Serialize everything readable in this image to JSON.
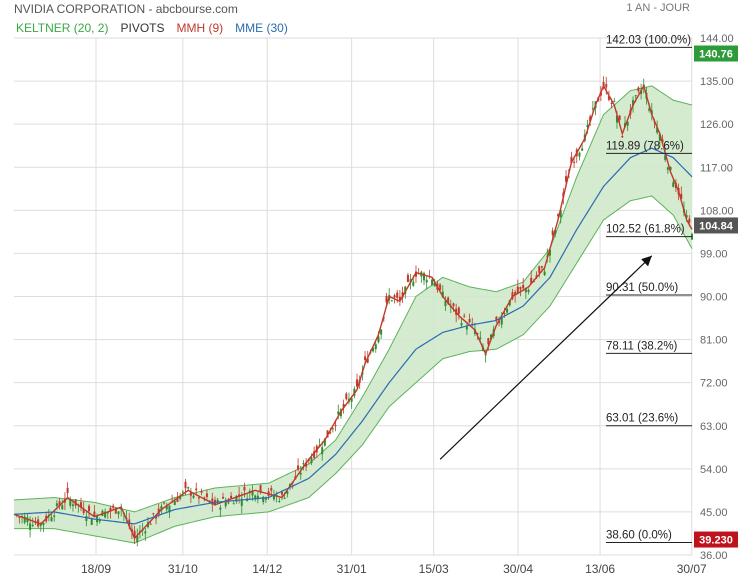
{
  "header": {
    "title": "NVIDIA CORPORATION - abcbourse.com",
    "period": "1 AN - JOUR"
  },
  "legend": [
    {
      "label": "KELTNER (20, 2)",
      "color": "#3aa843"
    },
    {
      "label": "PIVOTS",
      "color": "#333333"
    },
    {
      "label": "MMH (9)",
      "color": "#c0392b"
    },
    {
      "label": "MME (30)",
      "color": "#2b6cb0"
    }
  ],
  "chart_data": {
    "type": "line",
    "y_axis": {
      "ticks": [
        "144.00",
        "135.00",
        "126.00",
        "117.00",
        "108.00",
        "99.00",
        "90.00",
        "81.00",
        "72.00",
        "63.00",
        "54.00",
        "45.00",
        "36.00"
      ],
      "ylim": [
        36,
        144
      ]
    },
    "x_axis": {
      "ticks": [
        "18/09",
        "31/10",
        "14/12",
        "31/01",
        "15/03",
        "30/04",
        "13/06",
        "30/07"
      ]
    },
    "series": [
      {
        "name": "MMH (9)",
        "color": "#c0392b",
        "values": [
          [
            0,
            44.5
          ],
          [
            10,
            42.5
          ],
          [
            20,
            48
          ],
          [
            30,
            44
          ],
          [
            40,
            46
          ],
          [
            45,
            39.5
          ],
          [
            55,
            45.5
          ],
          [
            65,
            49.5
          ],
          [
            75,
            46.5
          ],
          [
            90,
            49.5
          ],
          [
            100,
            48
          ],
          [
            105,
            52
          ],
          [
            110,
            56
          ],
          [
            116,
            60
          ],
          [
            122,
            66
          ],
          [
            128,
            70.5
          ],
          [
            131,
            76
          ],
          [
            136,
            82
          ],
          [
            140,
            90
          ],
          [
            144,
            89
          ],
          [
            150,
            95
          ],
          [
            156,
            94
          ],
          [
            160,
            90
          ],
          [
            166,
            86
          ],
          [
            172,
            83
          ],
          [
            176,
            78
          ],
          [
            180,
            84
          ],
          [
            186,
            90
          ],
          [
            192,
            92
          ],
          [
            198,
            96
          ],
          [
            203,
            106
          ],
          [
            208,
            118
          ],
          [
            213,
            123
          ],
          [
            217,
            130
          ],
          [
            220,
            134
          ],
          [
            224,
            130
          ],
          [
            227,
            124
          ],
          [
            231,
            130
          ],
          [
            235,
            134
          ],
          [
            238,
            128
          ],
          [
            241,
            124
          ],
          [
            245,
            116
          ],
          [
            248,
            112
          ],
          [
            251,
            106
          ],
          [
            253,
            104
          ]
        ]
      },
      {
        "name": "MME (30)",
        "color": "#2b6cb0",
        "values": [
          [
            0,
            44.5
          ],
          [
            15,
            45
          ],
          [
            30,
            43.5
          ],
          [
            45,
            42.5
          ],
          [
            60,
            45.5
          ],
          [
            75,
            47
          ],
          [
            95,
            48
          ],
          [
            110,
            52
          ],
          [
            120,
            57
          ],
          [
            130,
            64
          ],
          [
            140,
            72
          ],
          [
            150,
            79
          ],
          [
            160,
            82.5
          ],
          [
            170,
            84
          ],
          [
            180,
            85
          ],
          [
            190,
            88
          ],
          [
            200,
            94
          ],
          [
            210,
            104
          ],
          [
            220,
            113
          ],
          [
            230,
            119
          ],
          [
            238,
            121
          ],
          [
            246,
            119
          ],
          [
            253,
            115
          ]
        ]
      }
    ],
    "keltner_upper": [
      [
        0,
        47.5
      ],
      [
        15,
        48
      ],
      [
        30,
        47
      ],
      [
        45,
        45
      ],
      [
        60,
        48
      ],
      [
        75,
        50
      ],
      [
        95,
        51
      ],
      [
        110,
        55
      ],
      [
        120,
        60
      ],
      [
        130,
        69
      ],
      [
        140,
        79
      ],
      [
        150,
        90
      ],
      [
        160,
        94
      ],
      [
        170,
        92
      ],
      [
        180,
        91
      ],
      [
        190,
        93
      ],
      [
        200,
        100
      ],
      [
        210,
        115
      ],
      [
        220,
        128
      ],
      [
        230,
        133
      ],
      [
        238,
        134
      ],
      [
        246,
        131
      ],
      [
        253,
        130
      ]
    ],
    "keltner_lower": [
      [
        0,
        41.5
      ],
      [
        15,
        41.5
      ],
      [
        30,
        40
      ],
      [
        45,
        38.5
      ],
      [
        60,
        42
      ],
      [
        75,
        44
      ],
      [
        95,
        45
      ],
      [
        110,
        48
      ],
      [
        120,
        53
      ],
      [
        130,
        59
      ],
      [
        140,
        67
      ],
      [
        150,
        72
      ],
      [
        160,
        77
      ],
      [
        170,
        78.5
      ],
      [
        180,
        79
      ],
      [
        190,
        82
      ],
      [
        200,
        88
      ],
      [
        210,
        97
      ],
      [
        220,
        106
      ],
      [
        230,
        110
      ],
      [
        238,
        111
      ],
      [
        246,
        107
      ],
      [
        253,
        100
      ]
    ],
    "fibonacci": [
      {
        "price": 142.03,
        "label": "142.03 (100.0%)"
      },
      {
        "price": 119.89,
        "label": "119.89 (78.6%)"
      },
      {
        "price": 102.52,
        "label": "102.52 (61.8%)"
      },
      {
        "price": 90.31,
        "label": "90.31 (50.0%)"
      },
      {
        "price": 78.11,
        "label": "78.11 (38.2%)"
      },
      {
        "price": 63.01,
        "label": "63.01 (23.6%)"
      },
      {
        "price": 38.6,
        "label": "38.60 (0.0%)"
      }
    ],
    "price_tags": [
      {
        "value": "140.76",
        "color": "#2e9b3a",
        "price": 140.76
      },
      {
        "value": "104.84",
        "color": "#555555",
        "price": 104.84
      },
      {
        "value": "39.230",
        "color": "#c0121c",
        "price": 39.23
      }
    ],
    "trend_arrow": {
      "from": [
        159,
        56
      ],
      "to": [
        238,
        98.5
      ]
    },
    "colors": {
      "band_fill": "#cfe9cb",
      "band_line": "#5db35a",
      "candle_up": "#2e8b2e",
      "candle_down": "#c0392b",
      "grid": "#dddddd"
    }
  }
}
